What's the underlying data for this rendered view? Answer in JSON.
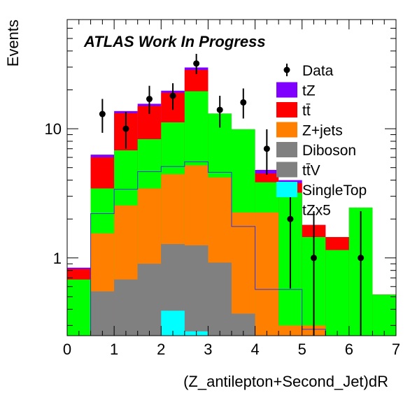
{
  "chart_data": {
    "type": "bar",
    "subtype": "stacked-histogram",
    "title": "ATLAS Work In Progress",
    "xlabel": "(Z_antilepton+Second_Jet)dR",
    "ylabel": "Events",
    "xlim": [
      0,
      7
    ],
    "ylim": [
      0.25,
      70
    ],
    "y_scale": "log",
    "grid": false,
    "legend_position": "top-right",
    "x_ticks": [
      "0",
      "1",
      "2",
      "3",
      "4",
      "5",
      "6",
      "7"
    ],
    "y_ticks": [
      {
        "value": 1,
        "label": "1"
      },
      {
        "value": 10,
        "label": "10"
      }
    ],
    "bin_edges": [
      0,
      0.5,
      1.0,
      1.5,
      2.0,
      2.5,
      3.0,
      3.5,
      4.0,
      4.5,
      5.0,
      5.5,
      6.0,
      6.5,
      7.0
    ],
    "stack_order_bottom_to_top": [
      "SingleTop",
      "ttV",
      "Diboson",
      "Z+jets",
      "tt",
      "tZ"
    ],
    "stacked_cumulative": [
      {
        "name": "SingleTop",
        "color": "#00ffff",
        "values": [
          0,
          0,
          0,
          0,
          0.39,
          0.27,
          0,
          0,
          0,
          0,
          0,
          0,
          0,
          0
        ]
      },
      {
        "name": "ttV",
        "color": "#808080",
        "values": [
          0,
          0.55,
          0.68,
          0.9,
          1.28,
          1.25,
          0.92,
          0.37,
          0,
          0,
          0,
          0,
          0,
          0
        ]
      },
      {
        "name": "Diboson",
        "color": "#808080",
        "values": [
          0,
          0.55,
          0.68,
          0.9,
          1.28,
          1.25,
          0.92,
          0.37,
          0,
          0,
          0,
          0,
          0,
          0
        ]
      },
      {
        "name": "Z+jets",
        "color": "#ff8000",
        "values": [
          0,
          1.55,
          2.55,
          3.45,
          4.45,
          5.2,
          4.2,
          2.25,
          2.25,
          0.3,
          0.3,
          0,
          0,
          0
        ]
      },
      {
        "name": "tt",
        "color": "#00ff00",
        "values": [
          0.68,
          3.45,
          6.8,
          8.3,
          11.2,
          19.5,
          13.1,
          9.9,
          3.85,
          3.2,
          1.45,
          1.15,
          2.45,
          0.52
        ]
      },
      {
        "name": "tt_red",
        "color": "#ff0000",
        "values": [
          0.82,
          6.0,
          13.2,
          15.0,
          19.0,
          28.5,
          13.1,
          9.9,
          4.5,
          3.8,
          1.8,
          1.45,
          2.45,
          0.52
        ]
      },
      {
        "name": "tZ",
        "color": "#7f00ff",
        "values": [
          0.84,
          6.3,
          13.7,
          15.6,
          19.7,
          29.8,
          13.1,
          9.9,
          4.8,
          4.0,
          1.8,
          1.45,
          2.45,
          0.52
        ]
      }
    ],
    "tZx5_line": {
      "name": "tZx5",
      "color": "#3333dd",
      "values": [
        0,
        2.2,
        3.4,
        4.65,
        5.1,
        5.55,
        4.6,
        1.75,
        0.57,
        0.57,
        0.28,
        0,
        0,
        0
      ]
    },
    "data_points": [
      {
        "x": 0.75,
        "y": 13.0,
        "ylow": 9.3,
        "yhigh": 17.0
      },
      {
        "x": 1.25,
        "y": 10.0,
        "ylow": 7.0,
        "yhigh": 13.5
      },
      {
        "x": 1.75,
        "y": 17.0,
        "ylow": 13.0,
        "yhigh": 21.5
      },
      {
        "x": 2.25,
        "y": 18.0,
        "ylow": 14.0,
        "yhigh": 22.5
      },
      {
        "x": 2.75,
        "y": 32.0,
        "ylow": 26.5,
        "yhigh": 38.0
      },
      {
        "x": 3.25,
        "y": 14.0,
        "ylow": 10.2,
        "yhigh": 18.0
      },
      {
        "x": 3.75,
        "y": 16.0,
        "ylow": 12.0,
        "yhigh": 20.5
      },
      {
        "x": 4.25,
        "y": 7.0,
        "ylow": 4.4,
        "yhigh": 9.9
      },
      {
        "x": 4.75,
        "y": 2.0,
        "ylow": 0.58,
        "yhigh": 3.6
      },
      {
        "x": 5.25,
        "y": 1.0,
        "ylow": 0.25,
        "yhigh": 2.3
      },
      {
        "x": 6.25,
        "y": 1.0,
        "ylow": 0.25,
        "yhigh": 2.3
      }
    ],
    "legend": [
      {
        "label": "Data",
        "kind": "marker",
        "color": "#000000"
      },
      {
        "label": "tZ",
        "kind": "box",
        "color": "#7f00ff"
      },
      {
        "label": "tt̄",
        "kind": "box",
        "color": "#ff0000"
      },
      {
        "label": "Z+jets",
        "kind": "box",
        "color": "#ff8000"
      },
      {
        "label": "Diboson",
        "kind": "box",
        "color": "#808080"
      },
      {
        "label": "tt̄V",
        "kind": "box",
        "color": "#808080"
      },
      {
        "label": "SingleTop",
        "kind": "box",
        "color": "#00ffff"
      },
      {
        "label": "tZx5",
        "kind": "none",
        "color": "#3333dd"
      }
    ]
  }
}
